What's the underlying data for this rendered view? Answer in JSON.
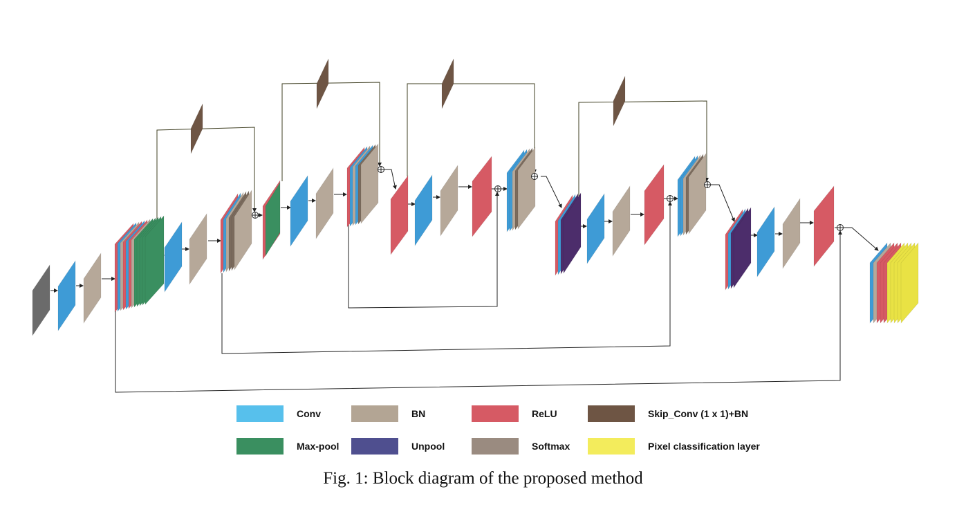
{
  "colors": {
    "input": "#6b6b6b",
    "conv": "#3e9bd6",
    "conv_legend": "#57c0ec",
    "bn": "#b6a899",
    "bn_legend": "#b3a594",
    "relu": "#d65a64",
    "skip_conv": "#6e5544",
    "maxpool": "#3a8f60",
    "unpool": "#4c2d6b",
    "unpool_legend": "#4f4f8f",
    "softmax": "#7b6b5d",
    "softmax_legend": "#9a8b80",
    "pixel": "#e9e244",
    "pixel_legend": "#f3ec5c",
    "line": "#222222",
    "skip_line": "#3f3f22"
  },
  "legend": {
    "conv": "Conv",
    "bn": "BN",
    "relu": "ReLU",
    "skip_conv": "Skip_Conv (1 x 1)+BN",
    "maxpool": "Max-pool",
    "unpool": "Unpool",
    "softmax": "Softmax",
    "pixel": "Pixel classification layer"
  },
  "caption": "Fig. 1: Block diagram of the proposed method"
}
